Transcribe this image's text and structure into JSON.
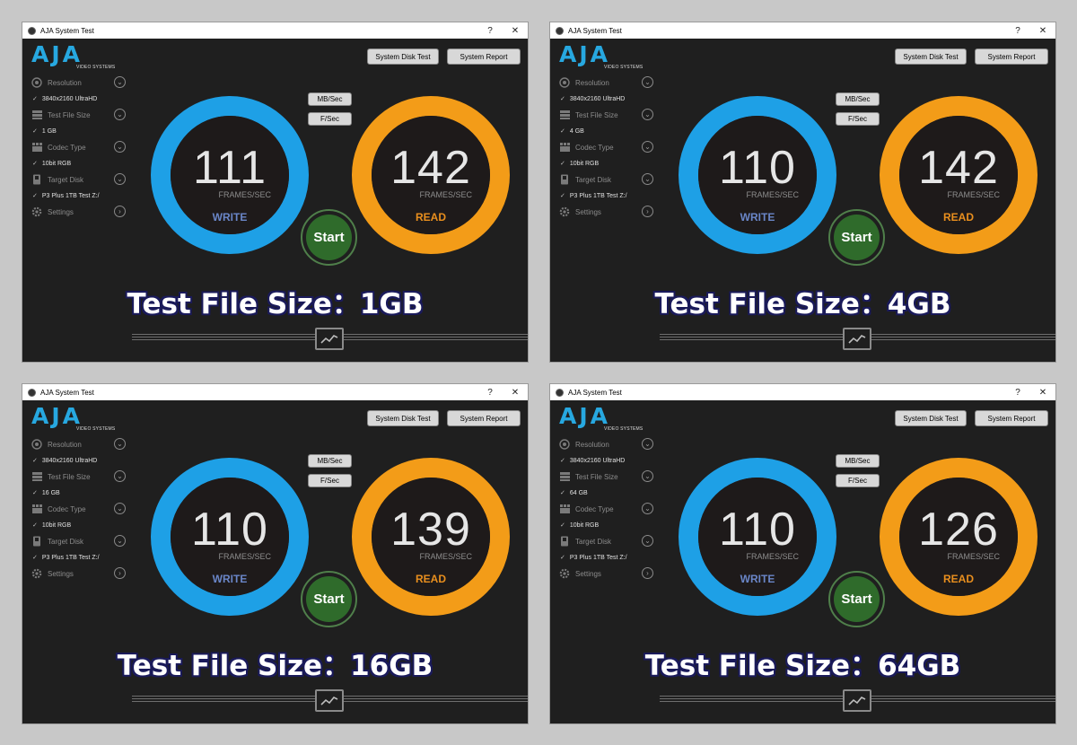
{
  "common": {
    "window_title": "AJA System Test",
    "help_glyph": "?",
    "close_glyph": "✕",
    "logo_text": "AJA",
    "logo_sub": "VIDEO SYSTEMS",
    "system_disk_test": "System Disk Test",
    "system_report": "System Report",
    "mbsec": "MB/Sec",
    "fsec": "F/Sec",
    "frames_unit": "FRAMES/SEC",
    "write_label": "WRITE",
    "read_label": "READ",
    "start_label": "Start",
    "menu": {
      "resolution_label": "Resolution",
      "resolution_value": "3840x2160 UltraHD",
      "file_size_label": "Test File Size",
      "codec_label": "Codec Type",
      "codec_value": "10bit RGB",
      "target_label": "Target Disk",
      "target_value": "P3 Plus 1TB Test Z:/",
      "settings_label": "Settings"
    },
    "check_glyph": "✓",
    "icons": [
      "resolution-icon",
      "filesize-icon",
      "codec-icon",
      "disk-icon",
      "gear-icon",
      "graph-icon"
    ],
    "colors": {
      "write": "#1ea0e6",
      "read": "#f39c18",
      "start": "#2f6b2b",
      "logo": "#27a8e0"
    }
  },
  "panels": [
    {
      "file_size": "1 GB",
      "write": "111",
      "read": "142",
      "caption": "Test File Size：1GB"
    },
    {
      "file_size": "4 GB",
      "write": "110",
      "read": "142",
      "caption": "Test File Size：4GB"
    },
    {
      "file_size": "16 GB",
      "write": "110",
      "read": "139",
      "caption": "Test File Size：16GB"
    },
    {
      "file_size": "64 GB",
      "write": "110",
      "read": "126",
      "caption": "Test File Size：64GB"
    }
  ]
}
